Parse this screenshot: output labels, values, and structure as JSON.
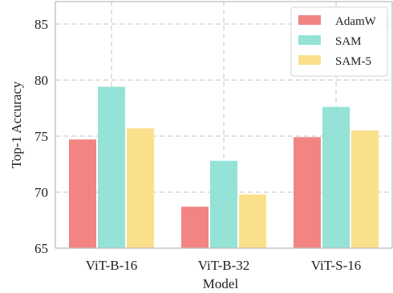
{
  "chart_data": {
    "type": "bar",
    "title": "",
    "xlabel": "Model",
    "ylabel": "Top-1 Accuracy",
    "ylim": [
      65,
      87
    ],
    "yticks": [
      65,
      70,
      75,
      80,
      85
    ],
    "categories": [
      "ViT-B-16",
      "ViT-B-32",
      "ViT-S-16"
    ],
    "grid": true,
    "legend_position": "top-right",
    "series": [
      {
        "name": "AdamW",
        "values": [
          74.7,
          68.7,
          74.9
        ],
        "color": "#f28482"
      },
      {
        "name": "SAM",
        "values": [
          79.4,
          72.8,
          77.6
        ],
        "color": "#94e3d6"
      },
      {
        "name": "SAM-5",
        "values": [
          75.7,
          69.8,
          75.5
        ],
        "color": "#fbe08c"
      }
    ]
  }
}
